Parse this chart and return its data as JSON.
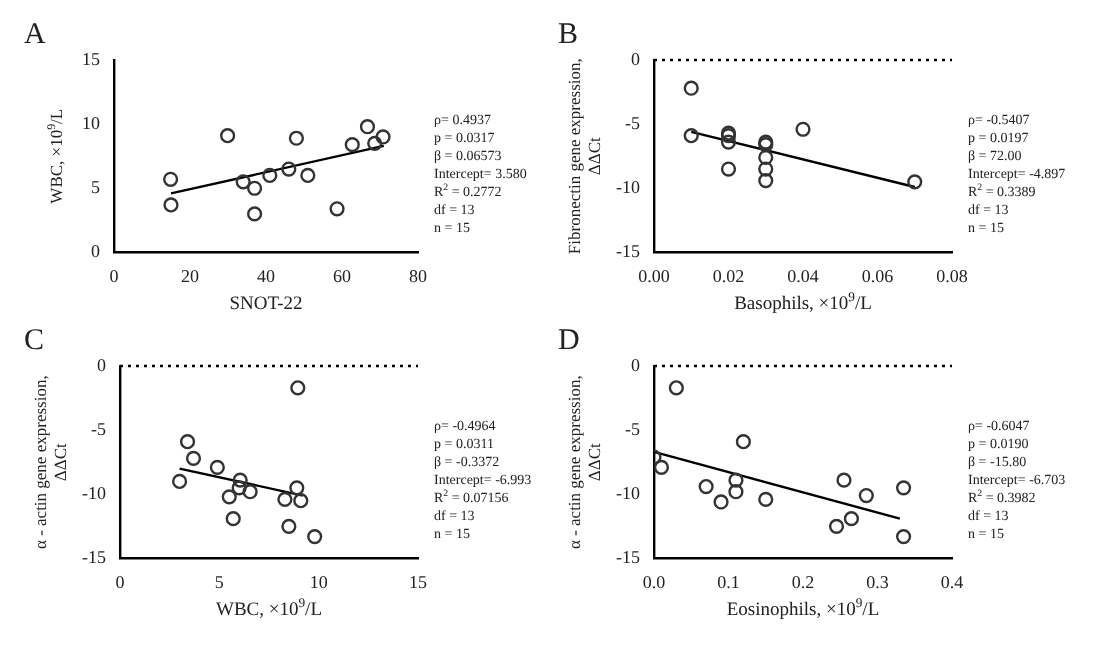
{
  "chart_data": [
    {
      "type": "scatter",
      "title": "A",
      "xlabel": "SNOT-22",
      "ylabel": "WBC, ×10$^{9}$/L",
      "xlim": [
        0,
        80
      ],
      "xticks": [
        0,
        20,
        40,
        60,
        80
      ],
      "ylim": [
        0,
        15
      ],
      "yticks": [
        0,
        5,
        10,
        15
      ],
      "grid": false,
      "legend": false,
      "annotations": [
        "ρ= 0.4937",
        "p = 0.0317",
        "β = 0.06573",
        "Intercept= 3.580",
        "R$^{2}$ = 0.2772",
        "df = 13",
        "n = 15"
      ],
      "series": [
        {
          "marker": "circle",
          "color": "#333333",
          "x": [
            14.9,
            15,
            29.9,
            34,
            37,
            37,
            41,
            46,
            48,
            51,
            58.7,
            62.7,
            66.7,
            68.6,
            70.8
          ],
          "values": [
            5.7,
            3.7,
            9.1,
            5.5,
            5.0,
            3.0,
            6.0,
            6.5,
            8.9,
            6.0,
            3.4,
            8.4,
            9.8,
            8.5,
            9.0
          ]
        },
        {
          "type": "line",
          "marker": "none",
          "color": "#000000",
          "x": [
            15,
            71
          ],
          "values": [
            4.6,
            8.3
          ]
        }
      ]
    },
    {
      "type": "scatter",
      "title": "B",
      "xlabel": "Basophils, ×10$^{9}$/L",
      "ylabel": "Fibronectin gene expression,\nΔΔCt",
      "xlim": [
        0,
        0.08
      ],
      "xticks": [
        {
          "value": 0,
          "label": "0.00"
        },
        {
          "value": 0.02,
          "label": "0.02"
        },
        {
          "value": 0.04,
          "label": "0.04"
        },
        {
          "value": 0.06,
          "label": "0.06"
        },
        {
          "value": 0.08,
          "label": "0.08"
        }
      ],
      "ylim": [
        -15,
        0
      ],
      "yticks": [
        -15,
        -10,
        -5,
        0
      ],
      "grid": false,
      "legend": false,
      "ref_lines": [
        {
          "axis": "y",
          "value": 0,
          "line_style": "dotted"
        }
      ],
      "annotations": [
        "ρ= -0.5407",
        "p = 0.0197",
        "β = 72.00",
        "Intercept= -4.897",
        "R$^{2}$ = 0.3389",
        "df = 13",
        "n = 15"
      ],
      "series": [
        {
          "marker": "circle",
          "color": "#333333",
          "x": [
            0.01,
            0.01,
            0.02,
            0.02,
            0.02,
            0.02,
            0.03,
            0.03,
            0.03,
            0.03,
            0.03,
            0.04,
            0.07
          ],
          "values": [
            -2.2,
            -5.9,
            -5.7,
            -5.9,
            -6.4,
            -8.5,
            -6.4,
            -6.6,
            -7.6,
            -8.5,
            -9.4,
            -5.4,
            -9.5
          ]
        },
        {
          "type": "line",
          "marker": "none",
          "color": "#000000",
          "x": [
            0.01,
            0.07
          ],
          "values": [
            -5.6,
            -9.9
          ]
        }
      ]
    },
    {
      "type": "scatter",
      "title": "C",
      "xlabel": "WBC, ×10$^{9}$/L",
      "ylabel": "α - actin gene expression,\nΔΔCt",
      "xlim": [
        0,
        15
      ],
      "xticks": [
        0,
        5,
        10,
        15
      ],
      "ylim": [
        -15,
        0
      ],
      "yticks": [
        -15,
        -10,
        -5,
        0
      ],
      "grid": false,
      "legend": false,
      "ref_lines": [
        {
          "axis": "y",
          "value": 0,
          "line_style": "dotted"
        }
      ],
      "annotations": [
        "ρ= -0.4964",
        "p = 0.0311",
        "β = -0.3372",
        "Intercept= -6.993",
        "R$^{2}$ = 0.07156",
        "df = 13",
        "n = 15"
      ],
      "series": [
        {
          "marker": "circle",
          "color": "#333333",
          "x": [
            3.0,
            3.4,
            3.7,
            4.9,
            5.5,
            5.7,
            6.0,
            6.05,
            6.55,
            8.3,
            8.5,
            8.9,
            8.95,
            9.1,
            9.8
          ],
          "values": [
            -9.0,
            -5.9,
            -7.2,
            -7.9,
            -10.2,
            -11.9,
            -9.5,
            -8.9,
            -9.8,
            -10.4,
            -12.5,
            -9.5,
            -1.7,
            -10.5,
            -13.3
          ]
        },
        {
          "type": "line",
          "marker": "none",
          "color": "#000000",
          "x": [
            3,
            9.2
          ],
          "values": [
            -8.0,
            -10.1
          ]
        }
      ]
    },
    {
      "type": "scatter",
      "title": "D",
      "xlabel": "Eosinophils, ×10$^{9}$/L",
      "ylabel": "α - actin gene expression,\nΔΔCt",
      "xlim": [
        0,
        0.4
      ],
      "xticks": [
        {
          "value": 0,
          "label": "0.0"
        },
        {
          "value": 0.1,
          "label": "0.1"
        },
        {
          "value": 0.2,
          "label": "0.2"
        },
        {
          "value": 0.3,
          "label": "0.3"
        },
        {
          "value": 0.4,
          "label": "0.4"
        }
      ],
      "ylim": [
        -15,
        0
      ],
      "yticks": [
        -15,
        -10,
        -5,
        0
      ],
      "grid": false,
      "legend": false,
      "ref_lines": [
        {
          "axis": "y",
          "value": 0,
          "line_style": "dotted"
        }
      ],
      "annotations": [
        "ρ= -0.6047",
        "p = 0.0190",
        "β = -15.80",
        "Intercept= -6.703",
        "R$^{2}$ = 0.3982",
        "df = 13",
        "n = 15"
      ],
      "series": [
        {
          "marker": "circle",
          "color": "#333333",
          "x": [
            0,
            0.01,
            0.03,
            0.07,
            0.09,
            0.11,
            0.11,
            0.12,
            0.15,
            0.245,
            0.255,
            0.265,
            0.285,
            0.335,
            0.335
          ],
          "values": [
            -7.1,
            -7.9,
            -1.7,
            -9.4,
            -10.6,
            -8.9,
            -9.8,
            -5.9,
            -10.4,
            -12.5,
            -8.9,
            -11.9,
            -10.1,
            -9.5,
            -13.3
          ]
        },
        {
          "type": "line",
          "marker": "none",
          "color": "#000000",
          "x": [
            0,
            0.33
          ],
          "values": [
            -6.7,
            -11.9
          ]
        }
      ]
    }
  ]
}
